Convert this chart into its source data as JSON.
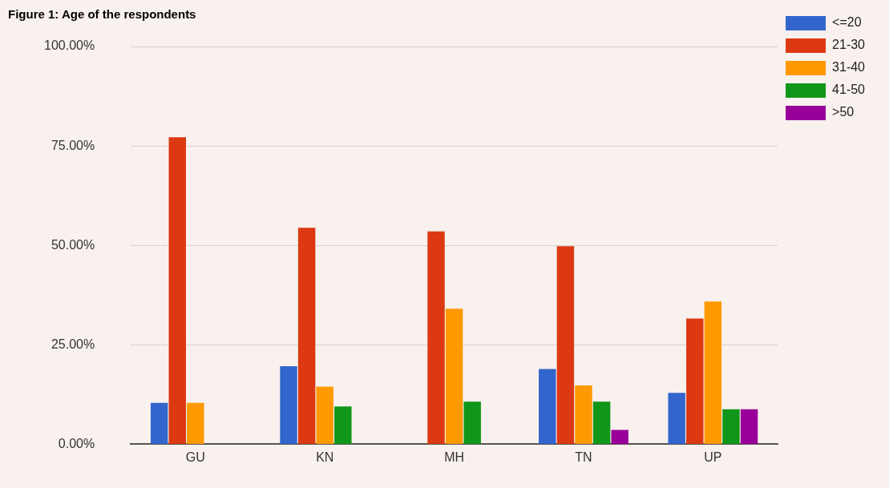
{
  "chart_data": {
    "type": "bar",
    "title": "Figure 1: Age of the respondents",
    "categories": [
      "GU",
      "KN",
      "MH",
      "TN",
      "UP"
    ],
    "series": [
      {
        "name": "<=20",
        "color": "#3366cc",
        "values": [
          10.4,
          19.6,
          null,
          18.9,
          12.9
        ]
      },
      {
        "name": "21-30",
        "color": "#dc3912",
        "values": [
          77.2,
          54.4,
          53.5,
          49.8,
          31.6
        ]
      },
      {
        "name": "31-40",
        "color": "#ff9900",
        "values": [
          10.4,
          14.5,
          34.1,
          14.8,
          35.9
        ]
      },
      {
        "name": "41-50",
        "color": "#109618",
        "values": [
          null,
          9.5,
          10.7,
          10.7,
          8.8
        ]
      },
      {
        "name": ">50",
        "color": "#990099",
        "values": [
          null,
          null,
          null,
          3.6,
          8.8
        ]
      }
    ],
    "ylim": [
      0,
      100
    ],
    "yticks": [
      {
        "value": 0,
        "label": "0.00%"
      },
      {
        "value": 25,
        "label": "25.00%"
      },
      {
        "value": 50,
        "label": "50.00%"
      },
      {
        "value": 75,
        "label": "75.00%"
      },
      {
        "value": 100,
        "label": "100.00%"
      }
    ],
    "grid": "y",
    "legend": "right"
  }
}
